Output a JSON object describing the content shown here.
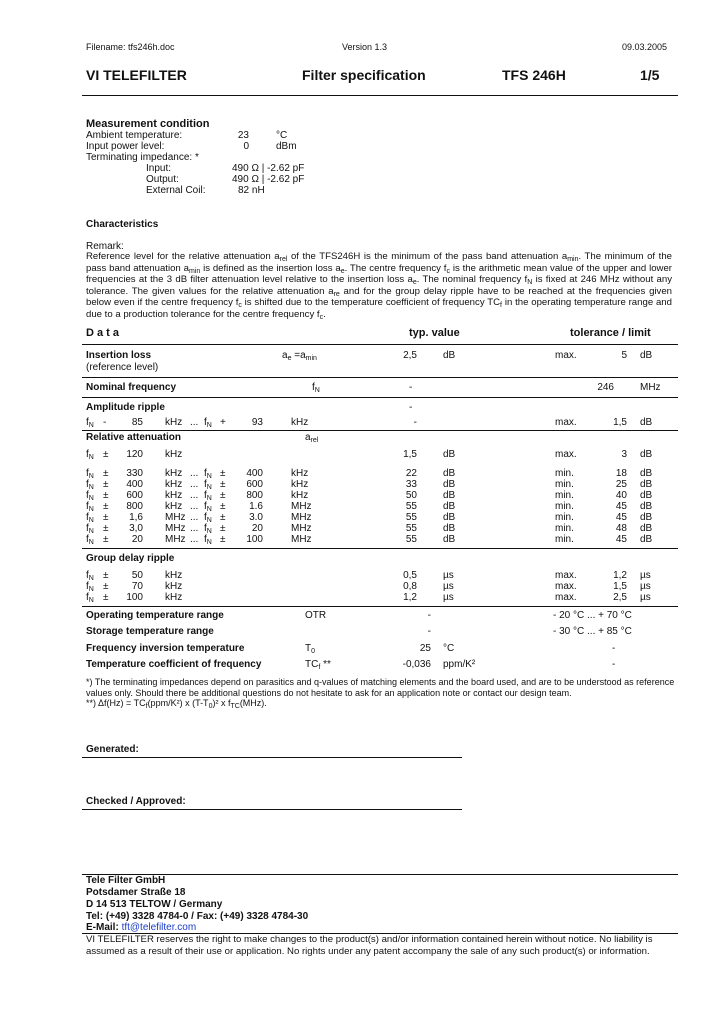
{
  "header": {
    "filename": "Filename: tfs246h.doc",
    "version": "Version 1.3",
    "date": "09.03.2005",
    "company": "VI TELEFILTER",
    "doc_type": "Filter specification",
    "product": "TFS 246H",
    "page": "1/5"
  },
  "measurement": {
    "title": "Measurement condition",
    "rows": [
      {
        "label": "Ambient temperature:",
        "value": "23",
        "unit": "°C"
      },
      {
        "label": "Input power level:",
        "value": "0",
        "unit": "dBm"
      },
      {
        "label": "Terminating impedance: *",
        "value": "",
        "unit": ""
      }
    ],
    "sub_rows": [
      {
        "label": "Input:",
        "value": "490 Ω | -2.62 pF"
      },
      {
        "label": "Output:",
        "value": "490 Ω | -2.62 pF"
      },
      {
        "label": "External Coil:",
        "value": "82  nH"
      }
    ]
  },
  "characteristics": {
    "title": "Characteristics",
    "remark_label": "Remark:",
    "remark": [
      [
        "Reference level for the relative attenuation a",
        ""
      ],
      [
        "",
        "rel"
      ],
      [
        " of the TFS246H is the minimum of the pass band attenuation a",
        ""
      ],
      [
        "",
        "min"
      ],
      [
        ". The minimum of the pass band attenuation a",
        ""
      ],
      [
        "",
        "min"
      ],
      [
        " is defined as the insertion loss a",
        ""
      ],
      [
        "",
        "e"
      ],
      [
        ". The centre frequency f",
        ""
      ],
      [
        "",
        "c"
      ],
      [
        " is the arithmetic mean value of the upper and lower frequencies at the 3 dB filter attenuation level relative to the insertion loss a",
        ""
      ],
      [
        "",
        "e"
      ],
      [
        ". The nominal frequency f",
        ""
      ],
      [
        "",
        "N"
      ],
      [
        " is fixed at 246 MHz without any tolerance. The given values for the relative attenuation a",
        ""
      ],
      [
        "",
        "re"
      ],
      [
        " and for the group delay ripple have to be reached at the frequencies given below even if the centre frequency f",
        ""
      ],
      [
        "",
        "c"
      ],
      [
        " is shifted due to the temperature coefficient of frequency TC",
        ""
      ],
      [
        "",
        "f"
      ],
      [
        " in the operating temperature range and due to a production tolerance for the centre frequency f",
        ""
      ],
      [
        "",
        "c"
      ],
      [
        ".",
        ""
      ]
    ]
  },
  "table": {
    "head": {
      "data": "D a t a",
      "typ": "typ. value",
      "tol": "tolerance / limit"
    },
    "fn": {
      "base": "f",
      "sub": "N"
    },
    "insertion": {
      "label": "Insertion loss",
      "sublabel": "(reference level)",
      "sym_a": "a",
      "sym_a_sub": "e",
      "sym_eq": " =a",
      "sym_b_sub": "min",
      "typ": "2,5",
      "typ_unit": "dB",
      "lim_type": "max.",
      "lim": "5",
      "lim_unit": "dB"
    },
    "nominal": {
      "label": "Nominal frequency",
      "sym": "f",
      "sym_sub": "N",
      "typ": "-",
      "lim": "246",
      "lim_unit": "MHz"
    },
    "amplitude": {
      "label": "Amplitude  ripple",
      "typ_head": "-",
      "rows": [
        {
          "s1": "-",
          "n1": "85",
          "u1": "kHz",
          "dots": "...",
          "s2": "+",
          "n2": "93",
          "u2": "kHz",
          "typ": "-",
          "typ_unit": "",
          "lim_type": "max.",
          "lim": "1,5",
          "lim_unit": "dB"
        }
      ]
    },
    "relative": {
      "label": "Relative attenuation",
      "sym": "a",
      "sym_sub": "rel",
      "rows": [
        {
          "s1": "±",
          "n1": "120",
          "u1": "kHz",
          "dots": "",
          "s2": "",
          "n2": "",
          "u2": "",
          "typ": "1,5",
          "typ_unit": "dB",
          "lim_type": "max.",
          "lim": "3",
          "lim_unit": "dB"
        },
        {
          "s1": "±",
          "n1": "330",
          "u1": "kHz",
          "dots": "...",
          "s2": "±",
          "n2": "400",
          "u2": "kHz",
          "typ": "22",
          "typ_unit": "dB",
          "lim_type": "min.",
          "lim": "18",
          "lim_unit": "dB"
        },
        {
          "s1": "±",
          "n1": "400",
          "u1": "kHz",
          "dots": "...",
          "s2": "±",
          "n2": "600",
          "u2": "kHz",
          "typ": "33",
          "typ_unit": "dB",
          "lim_type": "min.",
          "lim": "25",
          "lim_unit": "dB"
        },
        {
          "s1": "±",
          "n1": "600",
          "u1": "kHz",
          "dots": "...",
          "s2": "±",
          "n2": "800",
          "u2": "kHz",
          "typ": "50",
          "typ_unit": "dB",
          "lim_type": "min.",
          "lim": "40",
          "lim_unit": "dB"
        },
        {
          "s1": "±",
          "n1": "800",
          "u1": "kHz",
          "dots": "...",
          "s2": "±",
          "n2": "1.6",
          "u2": "MHz",
          "typ": "55",
          "typ_unit": "dB",
          "lim_type": "min.",
          "lim": "45",
          "lim_unit": "dB"
        },
        {
          "s1": "±",
          "n1": "1,6",
          "u1": "MHz",
          "dots": "...",
          "s2": "±",
          "n2": "3.0",
          "u2": "MHz",
          "typ": "55",
          "typ_unit": "dB",
          "lim_type": "min.",
          "lim": "45",
          "lim_unit": "dB"
        },
        {
          "s1": "±",
          "n1": "3,0",
          "u1": "MHz",
          "dots": "...",
          "s2": "±",
          "n2": "20",
          "u2": "MHz",
          "typ": "55",
          "typ_unit": "dB",
          "lim_type": "min.",
          "lim": "48",
          "lim_unit": "dB"
        },
        {
          "s1": "±",
          "n1": "20",
          "u1": "MHz",
          "dots": "...",
          "s2": "±",
          "n2": "100",
          "u2": "MHz",
          "typ": "55",
          "typ_unit": "dB",
          "lim_type": "min.",
          "lim": "45",
          "lim_unit": "dB"
        }
      ]
    },
    "group_delay": {
      "label": "Group delay ripple",
      "rows": [
        {
          "s1": "±",
          "n1": "50",
          "u1": "kHz",
          "dots": "",
          "s2": "",
          "n2": "",
          "u2": "",
          "typ": "0,5",
          "typ_unit": "µs",
          "lim_type": "max.",
          "lim": "1,2",
          "lim_unit": "µs"
        },
        {
          "s1": "±",
          "n1": "70",
          "u1": "kHz",
          "dots": "",
          "s2": "",
          "n2": "",
          "u2": "",
          "typ": "0,8",
          "typ_unit": "µs",
          "lim_type": "max.",
          "lim": "1,5",
          "lim_unit": "µs"
        },
        {
          "s1": "±",
          "n1": "100",
          "u1": "kHz",
          "dots": "",
          "s2": "",
          "n2": "",
          "u2": "",
          "typ": "1,2",
          "typ_unit": "µs",
          "lim_type": "max.",
          "lim": "2,5",
          "lim_unit": "µs"
        }
      ]
    },
    "temps": [
      {
        "label": "Operating temperature range",
        "sym": "OTR",
        "sym_sub": "",
        "sym_note": "",
        "typ": "-",
        "typ_unit": "",
        "tol": "- 20 °C ... + 70 °C"
      },
      {
        "label": "Storage temperature range",
        "sym": "",
        "sym_sub": "",
        "sym_note": "",
        "typ": "-",
        "typ_unit": "",
        "tol": "- 30 °C ... + 85 °C"
      },
      {
        "label": "Frequency inversion temperature",
        "sym": "T",
        "sym_sub": "0",
        "sym_note": "",
        "typ": "25",
        "typ_unit": "°C",
        "tol": "-"
      },
      {
        "label": "Temperature coefficient of frequency",
        "sym": "TC",
        "sym_sub": "f",
        "sym_note": " **",
        "typ": "-0,036",
        "typ_unit": "ppm/K²",
        "tol": "-"
      }
    ]
  },
  "footnotes": {
    "n1a": "*) The terminating impedances depend on parasitics and q-values of matching elements and the board used, and are to be understood as reference",
    "n1b": "values only. Should there be additional questions do not hesitate to ask for an application note or contact our design team.",
    "n2a": "**) Δf(Hz) = TC",
    "n2a_sub": "f",
    "n2b": "(ppm/K²) x (T-T",
    "n2b_sub": "0",
    "n2c": ")² x f",
    "n2c_sub": "TC",
    "n2d": "(MHz)."
  },
  "signatures": {
    "generated": "Generated:",
    "checked": "Checked / Approved:"
  },
  "footer": {
    "company": "Tele Filter GmbH",
    "street": "Potsdamer Straße 18",
    "city": "D 14 513 TELTOW / Germany",
    "phone": "Tel: (+49) 3328 4784-0 / Fax: (+49) 3328 4784-30",
    "email_label": "E-Mail: ",
    "email": "tft@telefilter.com",
    "disclaimer1": "VI TELEFILTER reserves the right to make changes to the product(s) and/or information contained herein without notice.  No liability is",
    "disclaimer2": "assumed as a result of their use or application.  No rights under any patent accompany the sale of any such product(s) or information.",
    "email_color": "#1a3cc8"
  }
}
